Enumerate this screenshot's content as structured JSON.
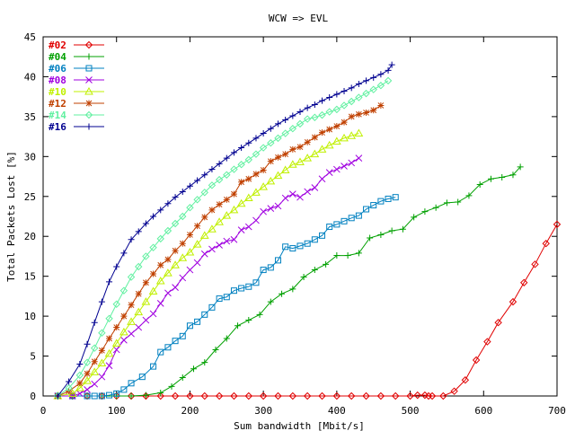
{
  "chart_data": {
    "type": "line",
    "title": "WCW => EVL",
    "xlabel": "Sum bandwidth [Mbit/s]",
    "ylabel": "Total Packets Lost [%]",
    "xlim": [
      0,
      700
    ],
    "ylim": [
      0,
      45
    ],
    "xticks": [
      "0",
      "100",
      "200",
      "300",
      "400",
      "500",
      "600",
      "700"
    ],
    "yticks": [
      "0",
      "5",
      "10",
      "15",
      "20",
      "25",
      "30",
      "35",
      "40",
      "45"
    ],
    "grid": false,
    "legend": "top-left",
    "series": [
      {
        "name": "#02",
        "color": "#e00000",
        "marker": "diamond",
        "x": [
          20,
          40,
          60,
          80,
          100,
          120,
          140,
          160,
          180,
          200,
          220,
          240,
          260,
          280,
          300,
          320,
          340,
          360,
          380,
          400,
          420,
          440,
          460,
          480,
          500,
          510,
          520,
          525,
          530,
          545,
          560,
          575,
          590,
          605,
          620,
          640,
          655,
          670,
          685,
          700
        ],
        "y": [
          0,
          0,
          0,
          0,
          0,
          0,
          0,
          0,
          0,
          0,
          0,
          0,
          0,
          0,
          0,
          0,
          0,
          0,
          0,
          0,
          0,
          0,
          0,
          0,
          0,
          0.1,
          0.1,
          0,
          0,
          0,
          0.6,
          2,
          4.5,
          6.8,
          9.2,
          11.8,
          14.2,
          16.5,
          19.1,
          21.5
        ]
      },
      {
        "name": "#04",
        "color": "#00a000",
        "marker": "plus",
        "x": [
          20,
          40,
          60,
          80,
          100,
          120,
          140,
          160,
          175,
          190,
          205,
          220,
          235,
          250,
          265,
          280,
          295,
          310,
          325,
          340,
          355,
          370,
          385,
          400,
          415,
          430,
          445,
          460,
          475,
          490,
          505,
          520,
          535,
          550,
          565,
          580,
          595,
          610,
          625,
          640,
          650
        ],
        "y": [
          0,
          0,
          0,
          0,
          0,
          0,
          0.1,
          0.4,
          1.2,
          2.3,
          3.4,
          4.2,
          5.8,
          7.2,
          8.8,
          9.5,
          10.2,
          11.8,
          12.8,
          13.4,
          14.9,
          15.8,
          16.5,
          17.6,
          17.6,
          17.9,
          19.8,
          20.2,
          20.7,
          20.9,
          22.4,
          23.1,
          23.6,
          24.2,
          24.3,
          25.1,
          26.5,
          27.2,
          27.4,
          27.7,
          28.7
        ]
      },
      {
        "name": "#06",
        "color": "#0080c0",
        "marker": "square",
        "x": [
          20,
          40,
          60,
          70,
          80,
          90,
          100,
          110,
          120,
          135,
          150,
          160,
          170,
          180,
          190,
          200,
          210,
          220,
          230,
          240,
          250,
          260,
          270,
          280,
          290,
          300,
          310,
          320,
          330,
          340,
          350,
          360,
          370,
          380,
          390,
          400,
          410,
          420,
          430,
          440,
          450,
          460,
          470,
          480
        ],
        "y": [
          0,
          0,
          0,
          0,
          0,
          0.1,
          0.3,
          0.8,
          1.6,
          2.4,
          3.7,
          5.5,
          6.1,
          6.9,
          7.5,
          8.8,
          9.3,
          10.2,
          11.1,
          12.2,
          12.4,
          13.2,
          13.5,
          13.7,
          14.2,
          15.8,
          16.1,
          17.0,
          18.7,
          18.5,
          18.8,
          19.1,
          19.6,
          20.1,
          21.2,
          21.5,
          21.9,
          22.3,
          22.6,
          23.4,
          23.9,
          24.4,
          24.7,
          24.9
        ]
      },
      {
        "name": "#08",
        "color": "#a000e0",
        "marker": "x",
        "x": [
          20,
          40,
          50,
          60,
          70,
          80,
          90,
          100,
          110,
          120,
          130,
          140,
          150,
          160,
          170,
          180,
          190,
          200,
          210,
          220,
          230,
          240,
          250,
          260,
          270,
          280,
          290,
          300,
          310,
          320,
          330,
          340,
          350,
          360,
          370,
          380,
          390,
          400,
          410,
          420,
          430
        ],
        "y": [
          0,
          0,
          0.3,
          0.8,
          1.5,
          2.4,
          3.8,
          5.8,
          7.0,
          7.8,
          8.6,
          9.5,
          10.3,
          11.6,
          12.9,
          13.6,
          14.8,
          15.8,
          16.7,
          17.8,
          18.4,
          18.9,
          19.4,
          19.6,
          20.8,
          21.2,
          22.0,
          23.1,
          23.5,
          23.8,
          24.8,
          25.3,
          24.9,
          25.6,
          26.1,
          27.2,
          28.0,
          28.4,
          28.8,
          29.2,
          29.8
        ]
      },
      {
        "name": "#10",
        "color": "#c0f000",
        "marker": "triangle",
        "x": [
          20,
          40,
          50,
          60,
          70,
          80,
          90,
          100,
          110,
          120,
          130,
          140,
          150,
          160,
          170,
          180,
          190,
          200,
          210,
          220,
          230,
          240,
          250,
          260,
          270,
          280,
          290,
          300,
          310,
          320,
          330,
          340,
          350,
          360,
          370,
          380,
          390,
          400,
          410,
          420,
          430
        ],
        "y": [
          0,
          0.3,
          1.0,
          1.9,
          3.0,
          4.1,
          5.3,
          6.6,
          8.0,
          9.3,
          10.5,
          11.8,
          13.1,
          14.4,
          15.4,
          16.4,
          17.3,
          18.0,
          19.0,
          20.1,
          20.9,
          21.8,
          22.6,
          23.3,
          24.1,
          24.8,
          25.5,
          26.2,
          26.9,
          27.6,
          28.3,
          29.0,
          29.3,
          29.8,
          30.3,
          30.9,
          31.4,
          31.9,
          32.3,
          32.6,
          32.9
        ]
      },
      {
        "name": "#12",
        "color": "#c04000",
        "marker": "star",
        "x": [
          20,
          35,
          50,
          60,
          70,
          80,
          90,
          100,
          110,
          120,
          130,
          140,
          150,
          160,
          170,
          180,
          190,
          200,
          210,
          220,
          230,
          240,
          250,
          260,
          270,
          280,
          290,
          300,
          310,
          320,
          330,
          340,
          350,
          360,
          370,
          380,
          390,
          400,
          410,
          420,
          430,
          440,
          450,
          460
        ],
        "y": [
          0,
          0.6,
          1.6,
          2.8,
          4.3,
          5.7,
          7.2,
          8.6,
          10.0,
          11.4,
          12.8,
          14.2,
          15.3,
          16.4,
          17.1,
          18.2,
          19.1,
          20.2,
          21.3,
          22.4,
          23.3,
          24.0,
          24.6,
          25.3,
          26.8,
          27.2,
          27.8,
          28.3,
          29.4,
          29.9,
          30.3,
          30.9,
          31.2,
          31.8,
          32.4,
          33.0,
          33.4,
          33.8,
          34.3,
          35.0,
          35.3,
          35.5,
          35.8,
          36.4
        ]
      },
      {
        "name": "#14",
        "color": "#60f0a0",
        "marker": "diamond",
        "x": [
          20,
          35,
          50,
          60,
          70,
          80,
          90,
          100,
          110,
          120,
          130,
          140,
          150,
          160,
          170,
          180,
          190,
          200,
          210,
          220,
          230,
          240,
          250,
          260,
          270,
          280,
          290,
          300,
          310,
          320,
          330,
          340,
          350,
          360,
          370,
          380,
          390,
          400,
          410,
          420,
          430,
          440,
          450,
          460,
          470
        ],
        "y": [
          0,
          1.0,
          2.6,
          4.2,
          6.0,
          7.9,
          9.7,
          11.5,
          13.2,
          14.9,
          16.2,
          17.5,
          18.6,
          19.7,
          20.7,
          21.6,
          22.5,
          23.6,
          24.6,
          25.5,
          26.4,
          27.1,
          27.7,
          28.4,
          29.0,
          29.6,
          30.3,
          31.1,
          31.7,
          32.3,
          32.9,
          33.5,
          34.1,
          34.7,
          34.9,
          35.2,
          35.6,
          35.9,
          36.4,
          36.9,
          37.4,
          37.9,
          38.4,
          38.9,
          39.5
        ]
      },
      {
        "name": "#16",
        "color": "#000090",
        "marker": "plus",
        "x": [
          20,
          35,
          50,
          60,
          70,
          80,
          90,
          100,
          110,
          120,
          130,
          140,
          150,
          160,
          170,
          180,
          190,
          200,
          210,
          220,
          230,
          240,
          250,
          260,
          270,
          280,
          290,
          300,
          310,
          320,
          330,
          340,
          350,
          360,
          370,
          380,
          390,
          400,
          410,
          420,
          430,
          440,
          450,
          460,
          470,
          475
        ],
        "y": [
          0,
          1.8,
          4.0,
          6.5,
          9.2,
          11.8,
          14.3,
          16.2,
          17.9,
          19.6,
          20.6,
          21.6,
          22.5,
          23.3,
          24.1,
          24.9,
          25.6,
          26.3,
          27.0,
          27.7,
          28.4,
          29.1,
          29.8,
          30.5,
          31.1,
          31.7,
          32.3,
          32.9,
          33.5,
          34.1,
          34.6,
          35.1,
          35.6,
          36.1,
          36.5,
          37.0,
          37.4,
          37.8,
          38.2,
          38.6,
          39.1,
          39.5,
          39.9,
          40.3,
          40.8,
          41.5
        ]
      }
    ]
  }
}
